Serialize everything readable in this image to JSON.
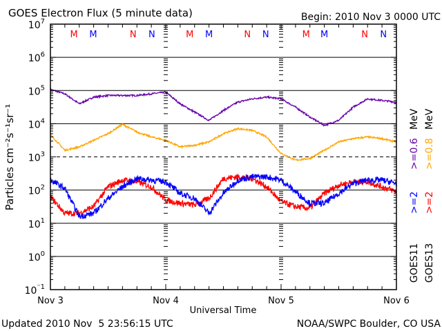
{
  "chart_data": {
    "type": "line",
    "title": "GOES Electron Flux (5 minute data)",
    "begin_label": "Begin: 2010 Nov 3 0000 UTC",
    "xlabel": "Universal Time",
    "ylabel": "Particles cm⁻²s⁻¹sr⁻¹",
    "x_unit": "hours since 2010 Nov 3 0000 UTC",
    "xlim": [
      0,
      72
    ],
    "x_ticks": [
      {
        "h": 0,
        "label": "Nov 3"
      },
      {
        "h": 24,
        "label": "Nov 4"
      },
      {
        "h": 48,
        "label": "Nov 5"
      },
      {
        "h": 72,
        "label": "Nov 6"
      }
    ],
    "yscale": "log",
    "ylim": [
      0.1,
      10000000
    ],
    "y_tick_exponents": [
      7,
      6,
      5,
      4,
      3,
      2,
      1,
      0,
      -1
    ],
    "threshold_line": 1000,
    "x": [
      0,
      3,
      6,
      9,
      12,
      15,
      18,
      21,
      24,
      27,
      30,
      33,
      36,
      39,
      42,
      45,
      48,
      51,
      54,
      57,
      60,
      63,
      66,
      69,
      72
    ],
    "series": [
      {
        "name": "GOES11 >=0.6 MeV",
        "color": "#6600AA",
        "log10_values": [
          5.03,
          4.9,
          4.6,
          4.8,
          4.85,
          4.85,
          4.85,
          4.9,
          4.95,
          4.6,
          4.35,
          4.1,
          4.4,
          4.65,
          4.75,
          4.8,
          4.75,
          4.5,
          4.2,
          3.95,
          4.1,
          4.5,
          4.75,
          4.7,
          4.65
        ]
      },
      {
        "name": "GOES13 >=0.8 MeV",
        "color": "#FFA500",
        "log10_values": [
          3.67,
          3.2,
          3.3,
          3.5,
          3.7,
          3.98,
          3.75,
          3.6,
          3.5,
          3.3,
          3.35,
          3.45,
          3.7,
          3.85,
          3.8,
          3.6,
          3.1,
          2.9,
          2.95,
          3.2,
          3.45,
          3.55,
          3.6,
          3.55,
          3.45
        ]
      },
      {
        "name": "GOES13 >=2 MeV",
        "color": "#FF0000",
        "log10_values": [
          1.8,
          1.3,
          1.3,
          1.5,
          2.1,
          2.3,
          2.25,
          2.1,
          1.7,
          1.6,
          1.55,
          1.75,
          2.35,
          2.4,
          2.35,
          2.1,
          1.65,
          1.5,
          1.45,
          1.9,
          2.15,
          2.25,
          2.25,
          2.1,
          1.95
        ]
      },
      {
        "name": "GOES11 >=2 MeV",
        "color": "#0000FF",
        "log10_values": [
          2.3,
          2.05,
          1.2,
          1.3,
          1.75,
          2.1,
          2.35,
          2.3,
          2.25,
          1.9,
          1.75,
          1.3,
          1.9,
          2.3,
          2.4,
          2.4,
          2.3,
          1.95,
          1.6,
          1.6,
          1.9,
          2.2,
          2.3,
          2.3,
          2.2
        ]
      }
    ],
    "legend": {
      "placement": "right",
      "columns": [
        {
          "sat": "GOES11",
          "entries": [
            {
              "label": ">=2",
              "color": "#0000FF"
            },
            {
              "label": ">=0.6",
              "color": "#6600AA"
            }
          ],
          "unit": "MeV"
        },
        {
          "sat": "GOES13",
          "entries": [
            {
              "label": ">=2",
              "color": "#FF0000"
            },
            {
              "label": ">=0.8",
              "color": "#FFA500"
            }
          ],
          "unit": "MeV"
        }
      ]
    },
    "markers": [
      {
        "h": 4.9,
        "label": "M",
        "color": "#FF0000"
      },
      {
        "h": 8.9,
        "label": "M",
        "color": "#0000FF"
      },
      {
        "h": 17.2,
        "label": "N",
        "color": "#FF0000"
      },
      {
        "h": 21.1,
        "label": "N",
        "color": "#0000FF"
      },
      {
        "h": 29.0,
        "label": "M",
        "color": "#FF0000"
      },
      {
        "h": 33.0,
        "label": "M",
        "color": "#0000FF"
      },
      {
        "h": 41.0,
        "label": "N",
        "color": "#FF0000"
      },
      {
        "h": 44.8,
        "label": "N",
        "color": "#0000FF"
      },
      {
        "h": 53.2,
        "label": "M",
        "color": "#FF0000"
      },
      {
        "h": 57.0,
        "label": "M",
        "color": "#0000FF"
      },
      {
        "h": 65.4,
        "label": "N",
        "color": "#FF0000"
      },
      {
        "h": 69.3,
        "label": "N",
        "color": "#0000FF"
      }
    ]
  },
  "footer": {
    "updated": "Updated 2010 Nov  5 23:56:15 UTC",
    "credit": "NOAA/SWPC Boulder, CO USA"
  }
}
